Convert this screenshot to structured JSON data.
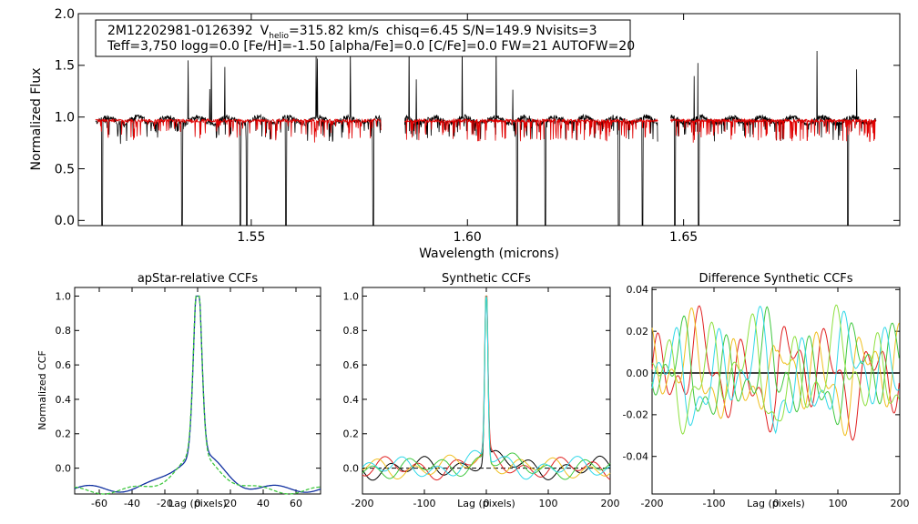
{
  "chart_data": [
    {
      "type": "line",
      "id": "spectrum",
      "title": "",
      "info_line1": {
        "star_id": "2M12202981-0126392",
        "v_label": "V",
        "v_sub": "helio",
        "v_value": "=315.82 km/s",
        "rest": "chisq=6.45  S/N=149.9  Nvisits=3"
      },
      "info_line2": "Teff=3,750 logg=0.0 [Fe/H]=-1.50 [alpha/Fe]=0.0 [C/Fe]=0.0 FW=21 AUTOFW=20",
      "xlabel": "Wavelength (microns)",
      "ylabel": "Normalized Flux",
      "xlim": [
        1.51,
        1.7
      ],
      "ylim": [
        -0.05,
        2.0
      ],
      "xticks": [
        "1.55",
        "1.60",
        "1.65"
      ],
      "xtick_values": [
        1.55,
        1.6,
        1.65
      ],
      "yticks": [
        "0.0",
        "0.5",
        "1.0",
        "1.5",
        "2.0"
      ],
      "ytick_values": [
        0.0,
        0.5,
        1.0,
        1.5,
        2.0
      ],
      "chips": [
        [
          1.514,
          1.58
        ],
        [
          1.5855,
          1.644
        ],
        [
          1.647,
          1.6945
        ]
      ],
      "series": [
        {
          "name": "observed",
          "color": "#000000"
        },
        {
          "name": "synthetic",
          "color": "#e00000"
        }
      ],
      "deep_lines": [
        1.5155,
        1.534,
        1.5475,
        1.549,
        1.558,
        1.5782,
        1.6115,
        1.618,
        1.635,
        1.6405,
        1.648,
        1.6535,
        1.688
      ]
    },
    {
      "type": "line",
      "id": "apstar-ccf",
      "title": "apStar-relative CCFs",
      "xlabel": "Lag (pixels)",
      "ylabel": "Normalized CCF",
      "xlim": [
        -75,
        75
      ],
      "ylim": [
        -0.15,
        1.05
      ],
      "xticks": [
        "-60",
        "-40",
        "-20",
        "0",
        "20",
        "40",
        "60"
      ],
      "xtick_values": [
        -60,
        -40,
        -20,
        0,
        20,
        40,
        60
      ],
      "yticks": [
        "0.0",
        "0.2",
        "0.4",
        "0.6",
        "0.8",
        "1.0"
      ],
      "ytick_values": [
        0.0,
        0.2,
        0.4,
        0.6,
        0.8,
        1.0
      ],
      "series": [
        {
          "name": "combined",
          "color": "#1030a0"
        },
        {
          "name": "visit",
          "color": "#40c840"
        }
      ]
    },
    {
      "type": "line",
      "id": "synthetic-ccf",
      "title": "Synthetic CCFs",
      "xlabel": "Lag (pixels)",
      "ylabel": "",
      "xlim": [
        -200,
        200
      ],
      "ylim": [
        -0.15,
        1.05
      ],
      "xticks": [
        "-200",
        "-100",
        "0",
        "100",
        "200"
      ],
      "xtick_values": [
        -200,
        -100,
        0,
        100,
        200
      ],
      "yticks": [
        "0.0",
        "0.2",
        "0.4",
        "0.6",
        "0.8",
        "1.0"
      ],
      "ytick_values": [
        0.0,
        0.2,
        0.4,
        0.6,
        0.8,
        1.0
      ],
      "series": [
        {
          "name": "combined",
          "color": "#000000"
        },
        {
          "name": "visit-1",
          "color": "#e02020"
        },
        {
          "name": "visit-2",
          "color": "#f0c020"
        },
        {
          "name": "visit-3",
          "color": "#40c840"
        },
        {
          "name": "visit-4",
          "color": "#30d8e8"
        }
      ],
      "zero_line": true
    },
    {
      "type": "line",
      "id": "difference-ccf",
      "title": "Difference Synthetic CCFs",
      "xlabel": "Lag (pixels)",
      "ylabel": "",
      "xlim": [
        -200,
        200
      ],
      "ylim": [
        -0.058,
        0.041
      ],
      "xticks": [
        "-200",
        "-100",
        "0",
        "100",
        "200"
      ],
      "xtick_values": [
        -200,
        -100,
        0,
        100,
        200
      ],
      "yticks": [
        "-0.04",
        "-0.02",
        "0.00",
        "0.02",
        "0.04"
      ],
      "ytick_values": [
        -0.04,
        -0.02,
        0.0,
        0.02,
        0.04
      ],
      "series": [
        {
          "name": "visit-1",
          "color": "#e02020"
        },
        {
          "name": "visit-2",
          "color": "#f0c020"
        },
        {
          "name": "visit-3",
          "color": "#40c840"
        },
        {
          "name": "visit-4",
          "color": "#30d8e8"
        },
        {
          "name": "visit-5",
          "color": "#8ee040"
        }
      ],
      "zero_line": true
    }
  ]
}
